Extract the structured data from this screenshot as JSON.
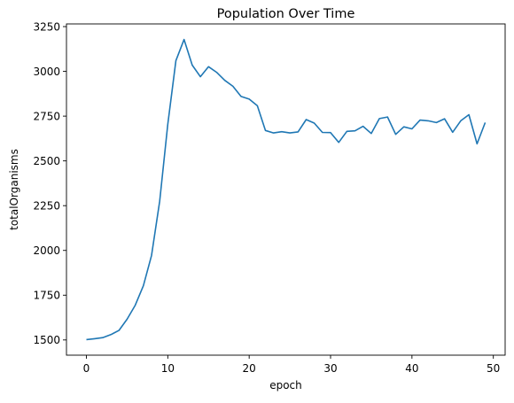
{
  "chart_data": {
    "type": "line",
    "title": "Population Over Time",
    "xlabel": "epoch",
    "ylabel": "totalOrganisms",
    "xlim": [
      -2.45,
      51.45
    ],
    "ylim": [
      1415,
      3265
    ],
    "xticks": [
      0,
      10,
      20,
      30,
      40,
      50
    ],
    "yticks": [
      1500,
      1750,
      2000,
      2250,
      2500,
      2750,
      3000,
      3250
    ],
    "grid": false,
    "series": [
      {
        "color": "#1f77b4",
        "x": [
          0,
          1,
          2,
          3,
          4,
          5,
          6,
          7,
          8,
          9,
          10,
          11,
          12,
          13,
          14,
          15,
          16,
          17,
          18,
          19,
          20,
          21,
          22,
          23,
          24,
          25,
          26,
          27,
          28,
          29,
          30,
          31,
          32,
          33,
          34,
          35,
          36,
          37,
          38,
          39,
          40,
          41,
          42,
          43,
          44,
          45,
          46,
          47,
          48,
          49
        ],
        "values": [
          1502,
          1507,
          1513,
          1530,
          1553,
          1616,
          1694,
          1803,
          1972,
          2275,
          2703,
          3060,
          3178,
          3035,
          2970,
          3026,
          2995,
          2950,
          2917,
          2860,
          2845,
          2808,
          2670,
          2656,
          2663,
          2656,
          2662,
          2731,
          2711,
          2659,
          2658,
          2603,
          2665,
          2668,
          2693,
          2653,
          2736,
          2745,
          2648,
          2690,
          2679,
          2728,
          2724,
          2714,
          2735,
          2660,
          2724,
          2758,
          2595,
          2714
        ]
      }
    ]
  }
}
